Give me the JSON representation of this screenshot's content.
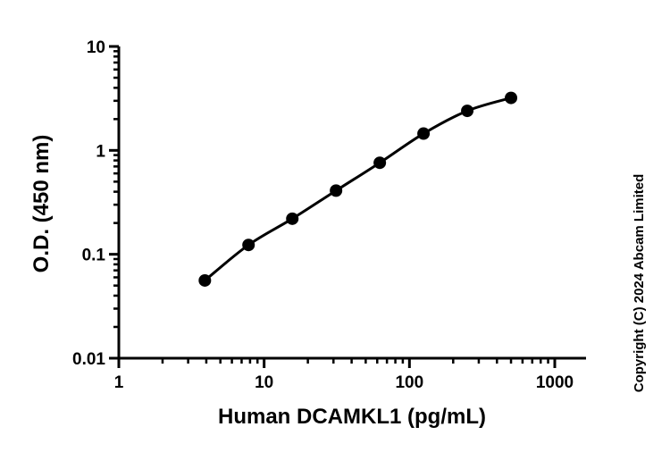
{
  "chart_data": {
    "type": "line",
    "xlabel": "Human DCAMKL1 (pg/mL)",
    "ylabel": "O.D. (450 nm)",
    "x_scale": "log",
    "y_scale": "log",
    "xlim": [
      1,
      1000
    ],
    "ylim": [
      0.01,
      10
    ],
    "x_ticks": [
      "1",
      "10",
      "100",
      "1000"
    ],
    "y_ticks": [
      "0.01",
      "0.1",
      "1",
      "10"
    ],
    "grid": false,
    "series": [
      {
        "x": [
          3.91,
          7.81,
          15.63,
          31.25,
          62.5,
          125,
          250,
          500
        ],
        "y": [
          0.056,
          0.123,
          0.22,
          0.41,
          0.76,
          1.45,
          2.4,
          3.2
        ],
        "color": "#000000",
        "marker": "circle",
        "fit_curve": true
      }
    ],
    "annotation": "Copyright (C) 2024 Abcam Limited"
  }
}
